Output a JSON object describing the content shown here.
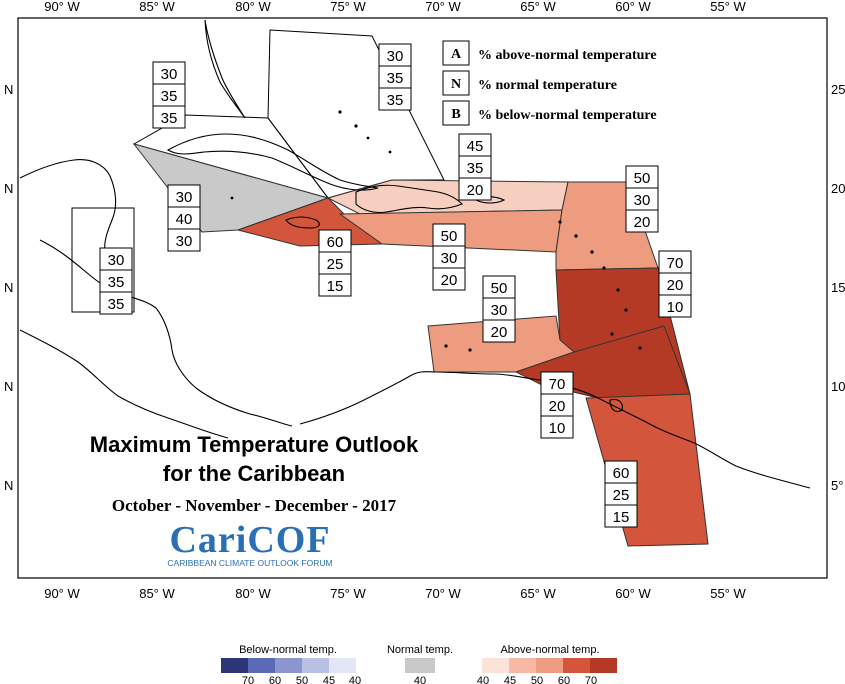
{
  "map": {
    "title_line1": "Maximum Temperature Outlook",
    "title_line2": "for the Caribbean",
    "period": "October - November - December - 2017",
    "logo": {
      "text": "CariCOF",
      "subtitle": "CARIBBEAN CLIMATE OUTLOOK FORUM",
      "color": "#2a6fb5"
    },
    "lon_labels": [
      "90° W",
      "85° W",
      "80° W",
      "75° W",
      "70° W",
      "65° W",
      "60° W",
      "55° W"
    ],
    "lat_labels_left": [
      "N",
      "N",
      "N",
      "N",
      "N"
    ],
    "lat_labels_right": [
      "25°",
      "20°",
      "15°",
      "10°",
      "5°"
    ],
    "legend_key": [
      {
        "letter": "A",
        "text": "% above-normal temperature"
      },
      {
        "letter": "N",
        "text": "% normal temperature"
      },
      {
        "letter": "B",
        "text": "% below-normal temperature"
      }
    ],
    "regions": [
      {
        "id": "bahamas",
        "fill": "none",
        "probs": [
          "30",
          "35",
          "35"
        ]
      },
      {
        "id": "cuba",
        "fill": "none",
        "probs": [
          "30",
          "35",
          "35"
        ]
      },
      {
        "id": "belize",
        "fill": "none",
        "probs": [
          "30",
          "35",
          "35"
        ]
      },
      {
        "id": "cayman",
        "fill": "#c9c9c9",
        "probs": [
          "30",
          "40",
          "30"
        ]
      },
      {
        "id": "jamaica",
        "fill": "#d3553b",
        "probs": [
          "60",
          "25",
          "15"
        ]
      },
      {
        "id": "hispaniola-north",
        "fill": "#f7cfc0",
        "probs": [
          "45",
          "35",
          "20"
        ]
      },
      {
        "id": "hispaniola-south",
        "fill": "#ee9c80",
        "probs": [
          "50",
          "30",
          "20"
        ]
      },
      {
        "id": "leeward",
        "fill": "#ee9c80",
        "probs": [
          "50",
          "30",
          "20"
        ]
      },
      {
        "id": "windward",
        "fill": "#b53a25",
        "probs": [
          "70",
          "20",
          "10"
        ]
      },
      {
        "id": "abc-islands",
        "fill": "#ee9c80",
        "probs": [
          "50",
          "30",
          "20"
        ]
      },
      {
        "id": "trinidad",
        "fill": "#b53a25",
        "probs": [
          "70",
          "20",
          "10"
        ]
      },
      {
        "id": "guianas",
        "fill": "#d3553b",
        "probs": [
          "60",
          "25",
          "15"
        ]
      }
    ],
    "colorbar": {
      "below": {
        "title": "Below-normal temp.",
        "ticks": [
          "70",
          "60",
          "50",
          "45",
          "40"
        ],
        "colors": [
          "#2b3577",
          "#5a69b8",
          "#8b96cf",
          "#b9c0e3",
          "#e3e6f5"
        ]
      },
      "normal": {
        "title": "Normal temp.",
        "ticks": [
          "40"
        ],
        "colors": [
          "#c9c9c9"
        ]
      },
      "above": {
        "title": "Above-normal temp.",
        "ticks": [
          "40",
          "45",
          "50",
          "60",
          "70"
        ],
        "colors": [
          "#fce3da",
          "#f7b9a3",
          "#ee9c80",
          "#d3553b",
          "#b53a25"
        ]
      }
    }
  }
}
